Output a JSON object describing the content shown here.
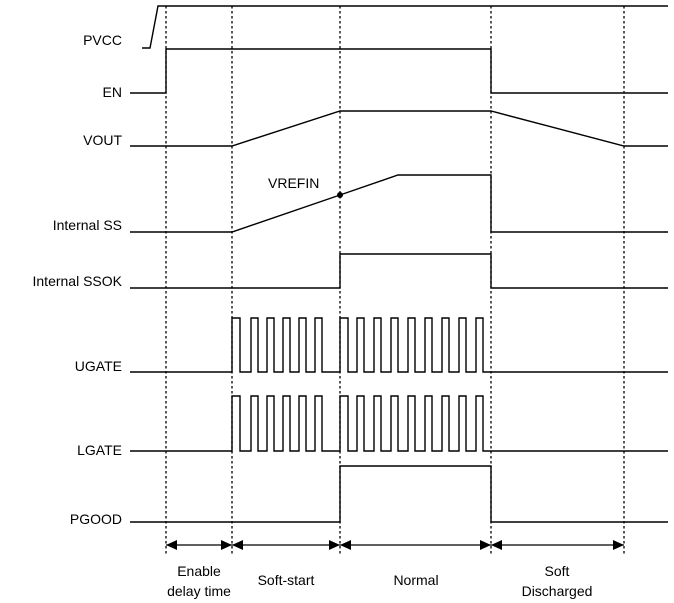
{
  "signals": {
    "pvcc": "PVCC",
    "en": "EN",
    "vout": "VOUT",
    "internal_ss": "Internal SS",
    "internal_ssok": "Internal SSOK",
    "ugate": "UGATE",
    "lgate": "LGATE",
    "pgood": "PGOOD"
  },
  "annotation": {
    "vrefin": "VREFIN"
  },
  "phases": {
    "enable_line1": "Enable",
    "enable_line2": "delay time",
    "soft_start": "Soft-start",
    "normal": "Normal",
    "soft_discharged_line1": "Soft",
    "soft_discharged_line2": "Discharged"
  },
  "colors": {
    "stroke": "#000000",
    "background": "#ffffff"
  }
}
